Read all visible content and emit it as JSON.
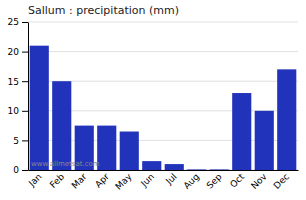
{
  "chart_data": {
    "type": "bar",
    "title": "Sallum : precipitation (mm)",
    "categories": [
      "Jan",
      "Feb",
      "Mar",
      "Apr",
      "May",
      "Jun",
      "Jul",
      "Aug",
      "Sep",
      "Oct",
      "Nov",
      "Dec"
    ],
    "values": [
      21,
      15,
      7.5,
      7.5,
      6.5,
      1.5,
      1.0,
      0.1,
      0.1,
      13,
      10,
      17
    ],
    "color": "#2233bb",
    "ylim": [
      0,
      25
    ],
    "yticks": [
      0,
      5,
      10,
      15,
      20,
      25
    ],
    "grid": true,
    "annotations": [
      "www.allmetsat.com"
    ]
  }
}
